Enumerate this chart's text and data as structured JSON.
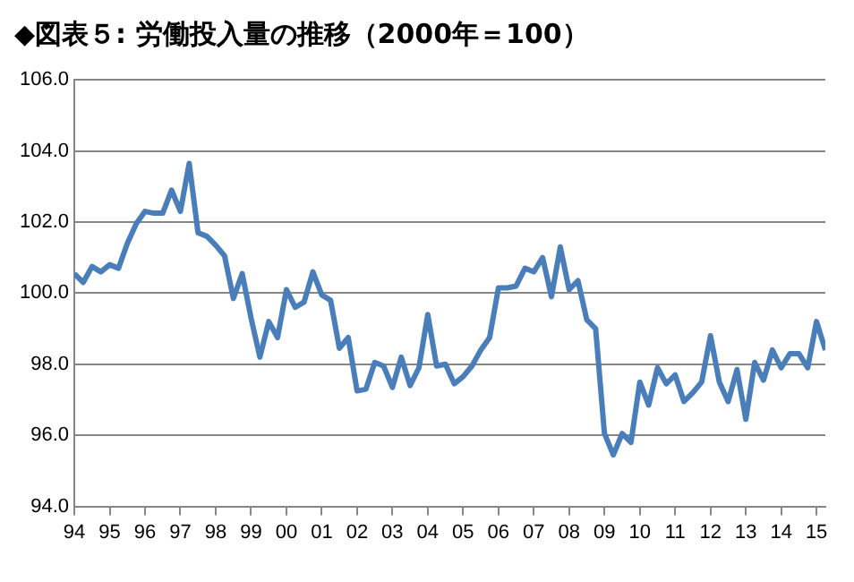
{
  "chart_data": {
    "type": "line",
    "title": "◆図表５: 労働投入量の推移（2000年＝100）",
    "x": [
      1994,
      1994.25,
      1994.5,
      1994.75,
      1995,
      1995.25,
      1995.5,
      1995.75,
      1996,
      1996.25,
      1996.5,
      1996.75,
      1997,
      1997.25,
      1997.5,
      1997.75,
      1998,
      1998.25,
      1998.5,
      1998.75,
      1999,
      1999.25,
      1999.5,
      1999.75,
      2000,
      2000.25,
      2000.5,
      2000.75,
      2001,
      2001.25,
      2001.5,
      2001.75,
      2002,
      2002.25,
      2002.5,
      2002.75,
      2003,
      2003.25,
      2003.5,
      2003.75,
      2004,
      2004.25,
      2004.5,
      2004.75,
      2005,
      2005.25,
      2005.5,
      2005.75,
      2006,
      2006.25,
      2006.5,
      2006.75,
      2007,
      2007.25,
      2007.5,
      2007.75,
      2008,
      2008.25,
      2008.5,
      2008.75,
      2009,
      2009.25,
      2009.5,
      2009.75,
      2010,
      2010.25,
      2010.5,
      2010.75,
      2011,
      2011.25,
      2011.5,
      2011.75,
      2012,
      2012.25,
      2012.5,
      2012.75,
      2013,
      2013.25,
      2013.5,
      2013.75,
      2014,
      2014.25,
      2014.5,
      2014.75,
      2015,
      2015.25
    ],
    "series": [
      {
        "color": "#4a7ebb",
        "values": [
          100.55,
          100.3,
          100.75,
          100.6,
          100.8,
          100.7,
          101.4,
          101.95,
          102.3,
          102.25,
          102.25,
          102.9,
          102.3,
          103.65,
          101.7,
          101.6,
          101.35,
          101.05,
          99.85,
          100.55,
          99.3,
          98.2,
          99.2,
          98.75,
          100.1,
          99.6,
          99.75,
          100.6,
          99.95,
          99.8,
          98.45,
          98.75,
          97.25,
          97.3,
          98.05,
          97.95,
          97.35,
          98.2,
          97.4,
          97.9,
          99.4,
          97.95,
          98.0,
          97.45,
          97.65,
          97.95,
          98.4,
          98.75,
          100.15,
          100.15,
          100.2,
          100.7,
          100.6,
          101.0,
          99.9,
          101.3,
          100.1,
          100.35,
          99.25,
          99.0,
          96.05,
          95.45,
          96.05,
          95.8,
          97.5,
          96.85,
          97.9,
          97.45,
          97.7,
          96.95,
          97.2,
          97.5,
          98.8,
          97.5,
          96.95,
          97.85,
          96.45,
          98.05,
          97.55,
          98.4,
          97.9,
          98.3,
          98.3,
          97.9,
          99.2,
          98.4
        ]
      }
    ],
    "xlim": [
      1994,
      2015.25
    ],
    "xticks": [
      {
        "value": 1994,
        "label": "94"
      },
      {
        "value": 1995,
        "label": "95"
      },
      {
        "value": 1996,
        "label": "96"
      },
      {
        "value": 1997,
        "label": "97"
      },
      {
        "value": 1998,
        "label": "98"
      },
      {
        "value": 1999,
        "label": "99"
      },
      {
        "value": 2000,
        "label": "00"
      },
      {
        "value": 2001,
        "label": "01"
      },
      {
        "value": 2002,
        "label": "02"
      },
      {
        "value": 2003,
        "label": "03"
      },
      {
        "value": 2004,
        "label": "04"
      },
      {
        "value": 2005,
        "label": "05"
      },
      {
        "value": 2006,
        "label": "06"
      },
      {
        "value": 2007,
        "label": "07"
      },
      {
        "value": 2008,
        "label": "08"
      },
      {
        "value": 2009,
        "label": "09"
      },
      {
        "value": 2010,
        "label": "10"
      },
      {
        "value": 2011,
        "label": "11"
      },
      {
        "value": 2012,
        "label": "12"
      },
      {
        "value": 2013,
        "label": "13"
      },
      {
        "value": 2014,
        "label": "14"
      },
      {
        "value": 2015,
        "label": "15"
      }
    ],
    "ylim": [
      94,
      106
    ],
    "yticks": [
      {
        "value": 94,
        "label": "94.0"
      },
      {
        "value": 96,
        "label": "96.0"
      },
      {
        "value": 98,
        "label": "98.0"
      },
      {
        "value": 100,
        "label": "100.0"
      },
      {
        "value": 102,
        "label": "102.0"
      },
      {
        "value": 104,
        "label": "104.0"
      },
      {
        "value": 106,
        "label": "106.0"
      }
    ],
    "grid": "y",
    "marker": "none",
    "line_style": "solid",
    "legend": false
  }
}
